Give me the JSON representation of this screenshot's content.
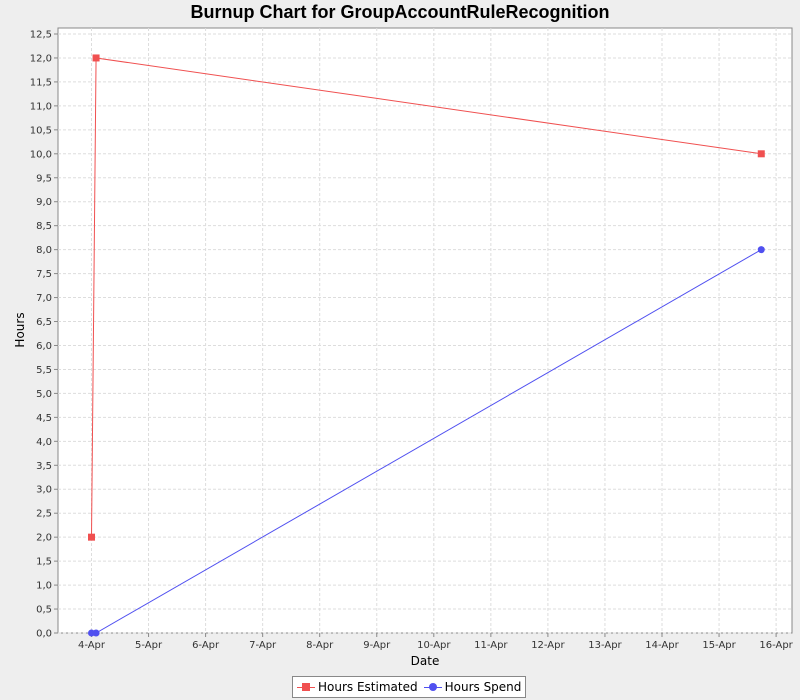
{
  "chart_data": {
    "type": "line",
    "title": "Burnup Chart for GroupAccountRuleRecognition",
    "xlabel": "Date",
    "ylabel": "Hours",
    "x_tick_labels": [
      "4-Apr",
      "5-Apr",
      "6-Apr",
      "7-Apr",
      "8-Apr",
      "9-Apr",
      "10-Apr",
      "11-Apr",
      "12-Apr",
      "13-Apr",
      "14-Apr",
      "15-Apr",
      "16-Apr"
    ],
    "y_tick_labels": [
      "0,0",
      "0,5",
      "1,0",
      "1,5",
      "2,0",
      "2,5",
      "3,0",
      "3,5",
      "4,0",
      "4,5",
      "5,0",
      "5,5",
      "6,0",
      "6,5",
      "7,0",
      "7,5",
      "8,0",
      "8,5",
      "9,0",
      "9,5",
      "10,0",
      "10,5",
      "11,0",
      "11,5",
      "12,0",
      "12,5"
    ],
    "ylim": [
      0,
      12.5
    ],
    "xlim": [
      "4-Apr",
      "16-Apr"
    ],
    "grid": true,
    "legend_position": "bottom",
    "series": [
      {
        "name": "Hours Estimated",
        "color": "#f05050",
        "marker": "square",
        "points": [
          {
            "x": "4-Apr",
            "y": 2.0
          },
          {
            "x": "4-Apr",
            "y": 12.0
          },
          {
            "x": "15-Apr",
            "y": 10.0
          }
        ]
      },
      {
        "name": "Hours Spend",
        "color": "#5050f0",
        "marker": "circle",
        "points": [
          {
            "x": "4-Apr",
            "y": 0.0
          },
          {
            "x": "4-Apr",
            "y": 0.0
          },
          {
            "x": "15-Apr",
            "y": 8.0
          }
        ]
      }
    ]
  }
}
